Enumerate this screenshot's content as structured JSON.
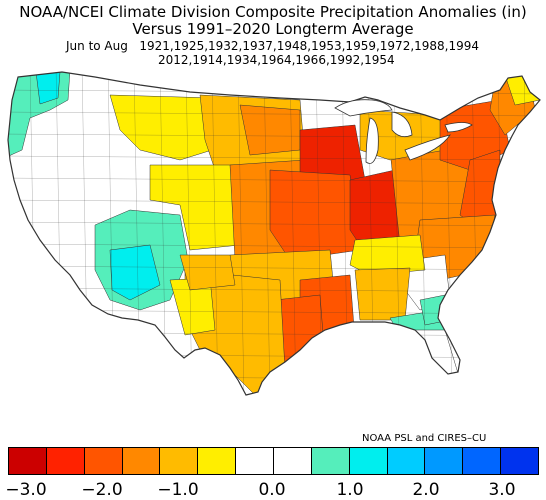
{
  "title_line1": "NOAA/NCEI Climate Division Composite Precipitation Anomalies (in)",
  "title_line2": "Versus 1991–2020 Longterm Average",
  "season": "Jun to Aug",
  "years_line1": "1921,1925,1932,1937,1948,1953,1959,1972,1988,1994",
  "years_line2": "2012,1914,1934,1964,1966,1992,1954",
  "credit": "NOAA PSL and CIRES–CU",
  "colorbar": {
    "colors": [
      "#cc0000",
      "#ff2200",
      "#ff5500",
      "#ff8800",
      "#ffbb00",
      "#ffee00",
      "#ffffff",
      "#ffffff",
      "#55eebb",
      "#00eeee",
      "#00ccff",
      "#0099ff",
      "#0066ff",
      "#0033ee"
    ],
    "tick_labels": [
      "−3.0",
      "−2.0",
      "−1.0",
      "0.0",
      "1.0",
      "2.0",
      "3.0"
    ]
  },
  "map_colors": {
    "boundary": "#333333",
    "dark_red": "#ee2200",
    "orange_red": "#ff5500",
    "orange": "#ff8800",
    "light_orange": "#ffbb00",
    "yellow": "#ffee00",
    "white": "#ffffff",
    "aqua": "#55eebb",
    "cyan": "#00eeee"
  }
}
